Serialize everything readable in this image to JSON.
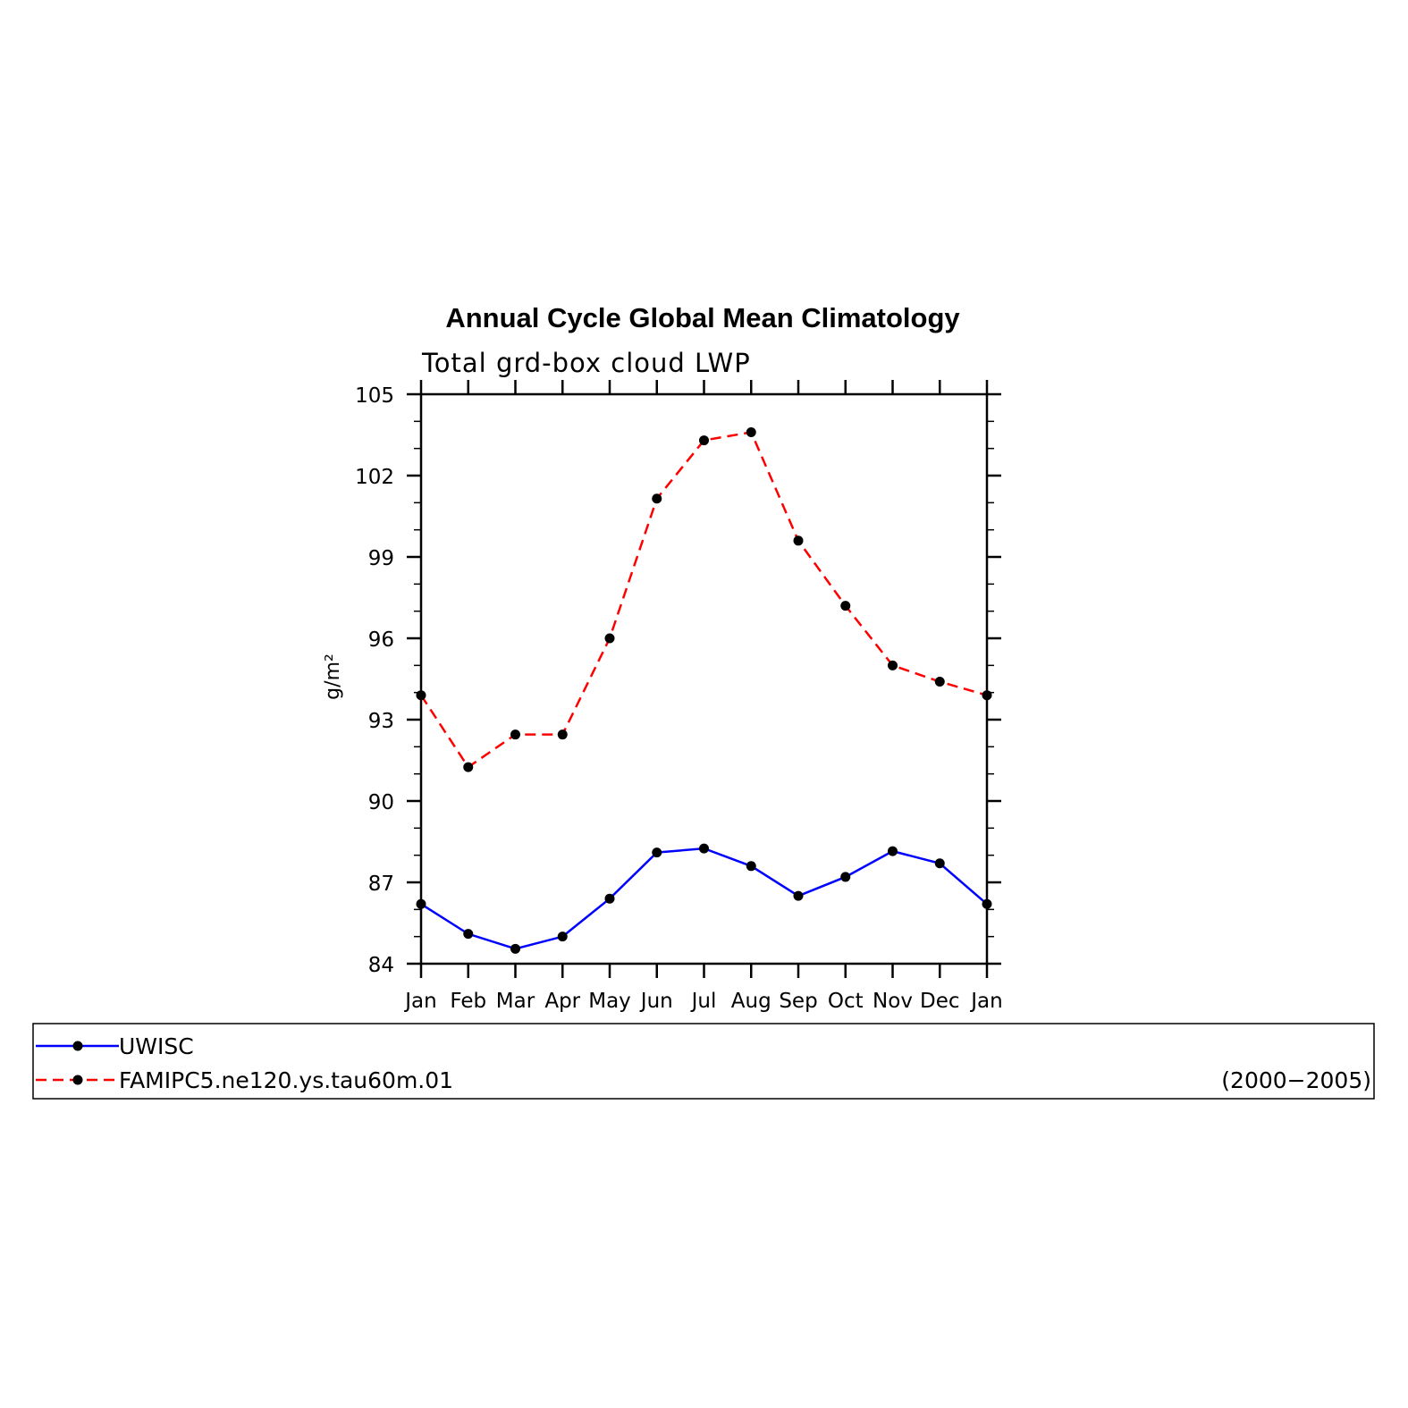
{
  "chart_data": {
    "type": "line",
    "title": "Annual Cycle Global Mean Climatology",
    "subtitle": "Total grd-box cloud LWP",
    "ylabel": "g/m²",
    "xlabel": "",
    "categories": [
      "Jan",
      "Feb",
      "Mar",
      "Apr",
      "May",
      "Jun",
      "Jul",
      "Aug",
      "Sep",
      "Oct",
      "Nov",
      "Dec",
      "Jan"
    ],
    "ylim": [
      84,
      105
    ],
    "yticks": [
      "105",
      "102",
      "99",
      "96",
      "93",
      "90",
      "87",
      "84"
    ],
    "ytick_values": [
      105,
      102,
      99,
      96,
      93,
      90,
      87,
      84
    ],
    "yminor_step": 1,
    "series": [
      {
        "name": "UWISC",
        "color": "#0000ff",
        "dash": "solid",
        "marker": "circle",
        "values": [
          86.2,
          85.1,
          84.55,
          85.0,
          86.4,
          88.1,
          88.25,
          87.6,
          86.5,
          87.2,
          88.15,
          87.7,
          86.2
        ]
      },
      {
        "name": "FAMIPC5.ne120.ys.tau60m.01",
        "color": "#ff0000",
        "dash": "dashed",
        "marker": "circle",
        "values": [
          93.9,
          91.25,
          92.45,
          92.45,
          96.0,
          101.15,
          103.3,
          103.6,
          99.6,
          97.2,
          95.0,
          94.4,
          93.9
        ]
      }
    ],
    "legend": {
      "placement": "bottom",
      "note": "(2000−2005)"
    },
    "grid": false
  }
}
